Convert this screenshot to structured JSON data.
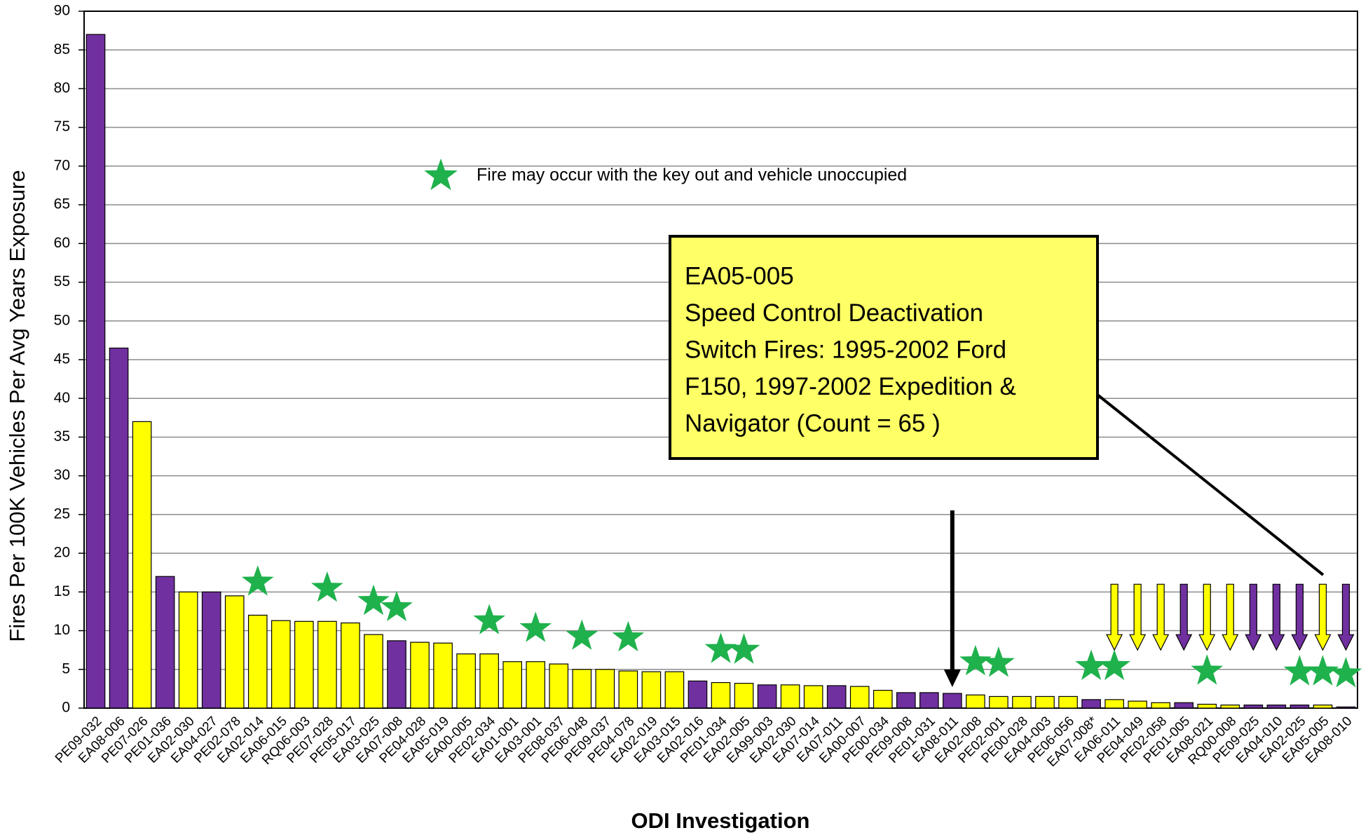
{
  "chart_data": {
    "type": "bar",
    "x_label": "ODI Investigation",
    "y_label": "Fires Per 100K Vehicles Per Avg Years Exposure",
    "star_note": "Fire may occur with the key out and vehicle unoccupied",
    "annotation": [
      "EA05-005",
      "Speed Control Deactivation",
      "Switch Fires: 1995-2002 Ford",
      "F150, 1997-2002 Expedition &",
      "Navigator (Count = 65 )"
    ],
    "categories": [
      "PE09-032",
      "EA08-006",
      "PE07-026",
      "PE01-036",
      "EA02-030",
      "EA04-027",
      "PE02-078",
      "EA02-014",
      "EA06-015",
      "RQ06-003",
      "PE07-028",
      "PE05-017",
      "EA03-025",
      "EA07-008",
      "PE04-028",
      "EA05-019",
      "EA00-005",
      "PE02-034",
      "EA01-001",
      "EA03-001",
      "PE08-037",
      "PE06-048",
      "PE09-037",
      "PE04-078",
      "EA02-019",
      "EA03-015",
      "EA02-016",
      "PE01-034",
      "EA02-005",
      "EA99-003",
      "EA02-030",
      "EA07-014",
      "EA07-011",
      "EA00-007",
      "PE00-034",
      "PE09-008",
      "PE01-031",
      "EA08-011",
      "EA02-008",
      "PE02-001",
      "PE00-028",
      "EA04-003",
      "PE06-056",
      "EA07-008*",
      "EA06-011",
      "PE04-049",
      "PE02-058",
      "PE01-005",
      "EA08-021",
      "RQ00-008",
      "PE09-025",
      "EA04-010",
      "EA02-025",
      "EA05-005",
      "EA08-010"
    ],
    "values": [
      87,
      46.5,
      37,
      17,
      15,
      15,
      14.5,
      12,
      11.3,
      11.2,
      11.2,
      11,
      9.5,
      8.7,
      8.5,
      8.4,
      7,
      7,
      6,
      6,
      5.7,
      5,
      5,
      4.8,
      4.7,
      4.7,
      3.5,
      3.3,
      3.2,
      3,
      3,
      2.9,
      2.9,
      2.8,
      2.3,
      2,
      2,
      1.9,
      1.7,
      1.5,
      1.5,
      1.5,
      1.5,
      1.1,
      1.1,
      0.9,
      0.7,
      0.7,
      0.5,
      0.4,
      0.4,
      0.4,
      0.4,
      0.4,
      0.15
    ],
    "colors": [
      "#7030a0",
      "#7030a0",
      "#ffff00",
      "#7030a0",
      "#ffff00",
      "#7030a0",
      "#ffff00",
      "#ffff00",
      "#ffff00",
      "#ffff00",
      "#ffff00",
      "#ffff00",
      "#ffff00",
      "#7030a0",
      "#ffff00",
      "#ffff00",
      "#ffff00",
      "#ffff00",
      "#ffff00",
      "#ffff00",
      "#ffff00",
      "#ffff00",
      "#ffff00",
      "#ffff00",
      "#ffff00",
      "#ffff00",
      "#7030a0",
      "#ffff00",
      "#ffff00",
      "#7030a0",
      "#ffff00",
      "#ffff00",
      "#7030a0",
      "#ffff00",
      "#ffff00",
      "#7030a0",
      "#7030a0",
      "#7030a0",
      "#ffff00",
      "#ffff00",
      "#ffff00",
      "#ffff00",
      "#ffff00",
      "#7030a0",
      "#ffff00",
      "#ffff00",
      "#ffff00",
      "#7030a0",
      "#ffff00",
      "#ffff00",
      "#7030a0",
      "#7030a0",
      "#7030a0",
      "#ffff00",
      "#7030a0"
    ],
    "star": [
      false,
      false,
      false,
      false,
      false,
      false,
      false,
      true,
      false,
      false,
      true,
      false,
      true,
      true,
      false,
      false,
      false,
      true,
      false,
      true,
      false,
      true,
      false,
      true,
      false,
      false,
      false,
      true,
      true,
      false,
      false,
      false,
      false,
      false,
      false,
      false,
      false,
      false,
      true,
      true,
      false,
      false,
      false,
      true,
      true,
      false,
      false,
      false,
      true,
      false,
      false,
      false,
      true,
      true,
      true
    ],
    "arrow": [
      false,
      false,
      false,
      false,
      false,
      false,
      false,
      false,
      false,
      false,
      false,
      false,
      false,
      false,
      false,
      false,
      false,
      false,
      false,
      false,
      false,
      false,
      false,
      false,
      false,
      false,
      false,
      false,
      false,
      false,
      false,
      false,
      false,
      false,
      false,
      false,
      false,
      false,
      false,
      false,
      false,
      false,
      false,
      false,
      true,
      true,
      true,
      true,
      true,
      true,
      true,
      true,
      true,
      true,
      true
    ],
    "star_color": "#1fb14c",
    "ylim": [
      0,
      90
    ],
    "yticks": [
      0,
      5,
      10,
      15,
      20,
      25,
      30,
      35,
      40,
      45,
      50,
      55,
      60,
      65,
      70,
      75,
      80,
      85,
      90
    ],
    "grid": true
  }
}
